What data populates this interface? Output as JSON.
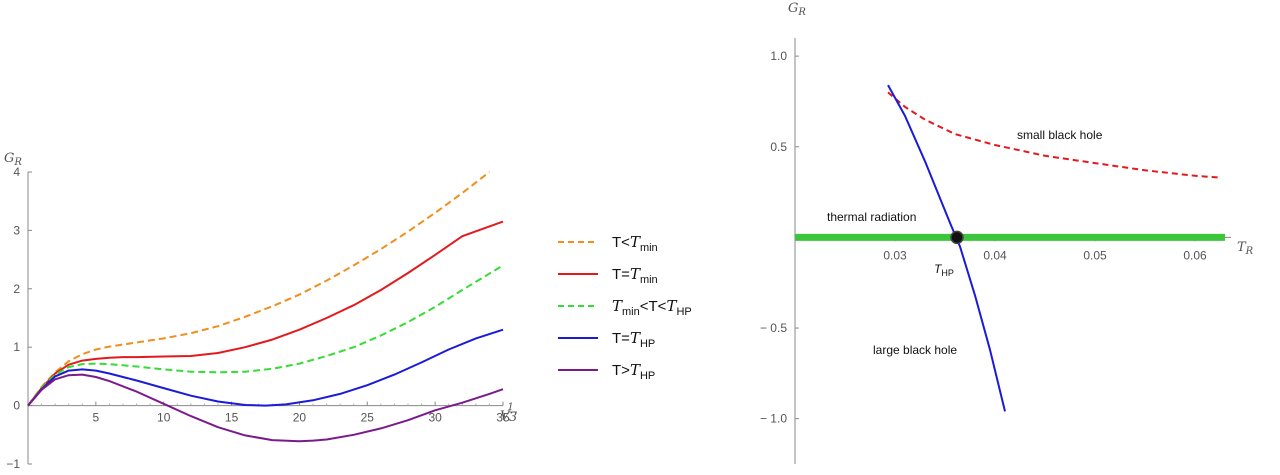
{
  "chart_data": [
    {
      "type": "line",
      "ylabel": "G_R",
      "xlabel": "V^(1/3)",
      "xlim": [
        0,
        35
      ],
      "ylim": [
        -1,
        4
      ],
      "xticks": [
        "5",
        "10",
        "15",
        "20",
        "25",
        "30",
        "35"
      ],
      "yticks": [
        "-1",
        "0",
        "1",
        "2",
        "3",
        "4"
      ],
      "legend_position": "right",
      "series": [
        {
          "name": "T<T_min",
          "color": "#f28e1c",
          "dash": true,
          "x": [
            0,
            1,
            2,
            3,
            4,
            5,
            6,
            8,
            10,
            12,
            14,
            16,
            18,
            20,
            22,
            24,
            26,
            28,
            30,
            32,
            34
          ],
          "y": [
            0,
            0.32,
            0.57,
            0.76,
            0.88,
            0.96,
            1.01,
            1.08,
            1.15,
            1.24,
            1.36,
            1.52,
            1.7,
            1.9,
            2.14,
            2.4,
            2.68,
            2.98,
            3.3,
            3.64,
            4.0
          ]
        },
        {
          "name": "T=T_min",
          "color": "#e31a1c",
          "dash": false,
          "x": [
            0,
            1,
            2,
            3,
            4,
            5,
            6,
            7,
            8,
            10,
            12,
            14,
            16,
            18,
            20,
            22,
            24,
            26,
            28,
            30,
            32,
            35
          ],
          "y": [
            0,
            0.3,
            0.55,
            0.7,
            0.77,
            0.8,
            0.82,
            0.83,
            0.83,
            0.84,
            0.85,
            0.9,
            1.0,
            1.13,
            1.3,
            1.5,
            1.72,
            1.98,
            2.27,
            2.58,
            2.9,
            3.15
          ]
        },
        {
          "name": "T_min<T<T_HP",
          "color": "#33dd33",
          "dash": true,
          "x": [
            0,
            1,
            2,
            3,
            4,
            5,
            6,
            8,
            10,
            12,
            14,
            16,
            18,
            20,
            22,
            24,
            26,
            28,
            30,
            32,
            35
          ],
          "y": [
            0,
            0.3,
            0.53,
            0.66,
            0.71,
            0.72,
            0.71,
            0.67,
            0.62,
            0.58,
            0.57,
            0.58,
            0.63,
            0.72,
            0.85,
            1.0,
            1.2,
            1.43,
            1.69,
            1.98,
            2.4
          ]
        },
        {
          "name": "T=T_HP",
          "color": "#1a1ad9",
          "dash": false,
          "x": [
            0,
            1,
            2,
            3,
            4,
            5,
            6,
            8,
            10,
            12,
            14,
            16,
            17.5,
            19,
            21,
            23,
            25,
            27,
            29,
            31,
            33,
            35
          ],
          "y": [
            0,
            0.28,
            0.5,
            0.6,
            0.62,
            0.6,
            0.55,
            0.43,
            0.3,
            0.17,
            0.07,
            0.01,
            0.0,
            0.02,
            0.09,
            0.2,
            0.35,
            0.53,
            0.74,
            0.96,
            1.15,
            1.3
          ]
        },
        {
          "name": "T>T_HP",
          "color": "#7b1a8c",
          "dash": false,
          "x": [
            0,
            1,
            2,
            3,
            4,
            5,
            6,
            8,
            10,
            12,
            14,
            16,
            18,
            20,
            21,
            22,
            24,
            26,
            28,
            30,
            32,
            34,
            35
          ],
          "y": [
            0,
            0.27,
            0.45,
            0.52,
            0.53,
            0.49,
            0.42,
            0.24,
            0.03,
            -0.18,
            -0.37,
            -0.51,
            -0.59,
            -0.61,
            -0.6,
            -0.58,
            -0.5,
            -0.39,
            -0.25,
            -0.08,
            0.05,
            0.2,
            0.28
          ]
        }
      ]
    },
    {
      "type": "line",
      "ylabel": "G_R",
      "xlabel": "T_R",
      "xlim": [
        0.02,
        0.063
      ],
      "ylim": [
        -1.25,
        1.1
      ],
      "xticks": [
        "0.03",
        "0.04",
        "0.05",
        "0.06"
      ],
      "yticks": [
        "1.0",
        "0.5",
        "-0.5",
        "-1.0"
      ],
      "annotations": [
        "small black hole",
        "thermal radiation",
        "large black hole",
        "T_HP"
      ],
      "series": [
        {
          "name": "small black hole",
          "color": "#e31a1c",
          "dash": true,
          "x": [
            0.0293,
            0.031,
            0.033,
            0.036,
            0.04,
            0.045,
            0.05,
            0.055,
            0.06,
            0.0625
          ],
          "y": [
            0.8,
            0.72,
            0.65,
            0.57,
            0.51,
            0.45,
            0.41,
            0.37,
            0.34,
            0.33
          ]
        },
        {
          "name": "large black hole",
          "color": "#1a1ad9",
          "dash": false,
          "x": [
            0.0293,
            0.031,
            0.033,
            0.0355,
            0.0365,
            0.038,
            0.0395,
            0.041
          ],
          "y": [
            0.84,
            0.67,
            0.42,
            0.08,
            -0.05,
            -0.32,
            -0.62,
            -0.96
          ]
        },
        {
          "name": "thermal radiation",
          "color": "#3cc63c",
          "dash": false,
          "x": [
            0.02,
            0.063
          ],
          "y": [
            0,
            0
          ]
        }
      ],
      "point": {
        "name": "T_HP",
        "x": 0.0362,
        "y": 0
      }
    }
  ]
}
